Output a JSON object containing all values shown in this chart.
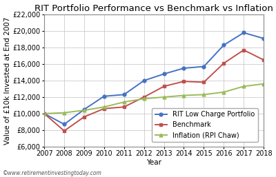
{
  "title": "RIT Portfolio Performance vs Benchmark vs Inflation",
  "xlabel": "Year",
  "ylabel": "Value of £10k Invested at End 2007",
  "watermark": "©www.retirementinvestingtoday.com",
  "years": [
    2007,
    2008,
    2009,
    2010,
    2011,
    2012,
    2013,
    2014,
    2015,
    2016,
    2017,
    2018
  ],
  "rit": [
    10000,
    8700,
    10500,
    12100,
    12300,
    14000,
    14800,
    15500,
    15700,
    18300,
    19800,
    19100
  ],
  "benchmark": [
    10000,
    7900,
    9600,
    10600,
    10800,
    12000,
    13300,
    13900,
    13800,
    16100,
    17700,
    16500
  ],
  "inflation": [
    10000,
    10100,
    10400,
    10800,
    11400,
    11800,
    12000,
    12200,
    12300,
    12600,
    13300,
    13600
  ],
  "rit_color": "#4472C4",
  "benchmark_color": "#C0504D",
  "inflation_color": "#9BBB59",
  "rit_label": "RIT Low Charge Portfolio",
  "benchmark_label": "Benchmark",
  "inflation_label": "Inflation (RPI Chaw)",
  "ylim_min": 6000,
  "ylim_max": 22000,
  "yticks": [
    6000,
    8000,
    10000,
    12000,
    14000,
    16000,
    18000,
    20000,
    22000
  ],
  "bg_color": "#FFFFFF",
  "grid_color": "#C0C0C0",
  "title_fontsize": 9.5,
  "label_fontsize": 7.5,
  "tick_fontsize": 7,
  "legend_fontsize": 7,
  "watermark_fontsize": 5.5,
  "marker_size": 3.5,
  "line_width": 1.4
}
